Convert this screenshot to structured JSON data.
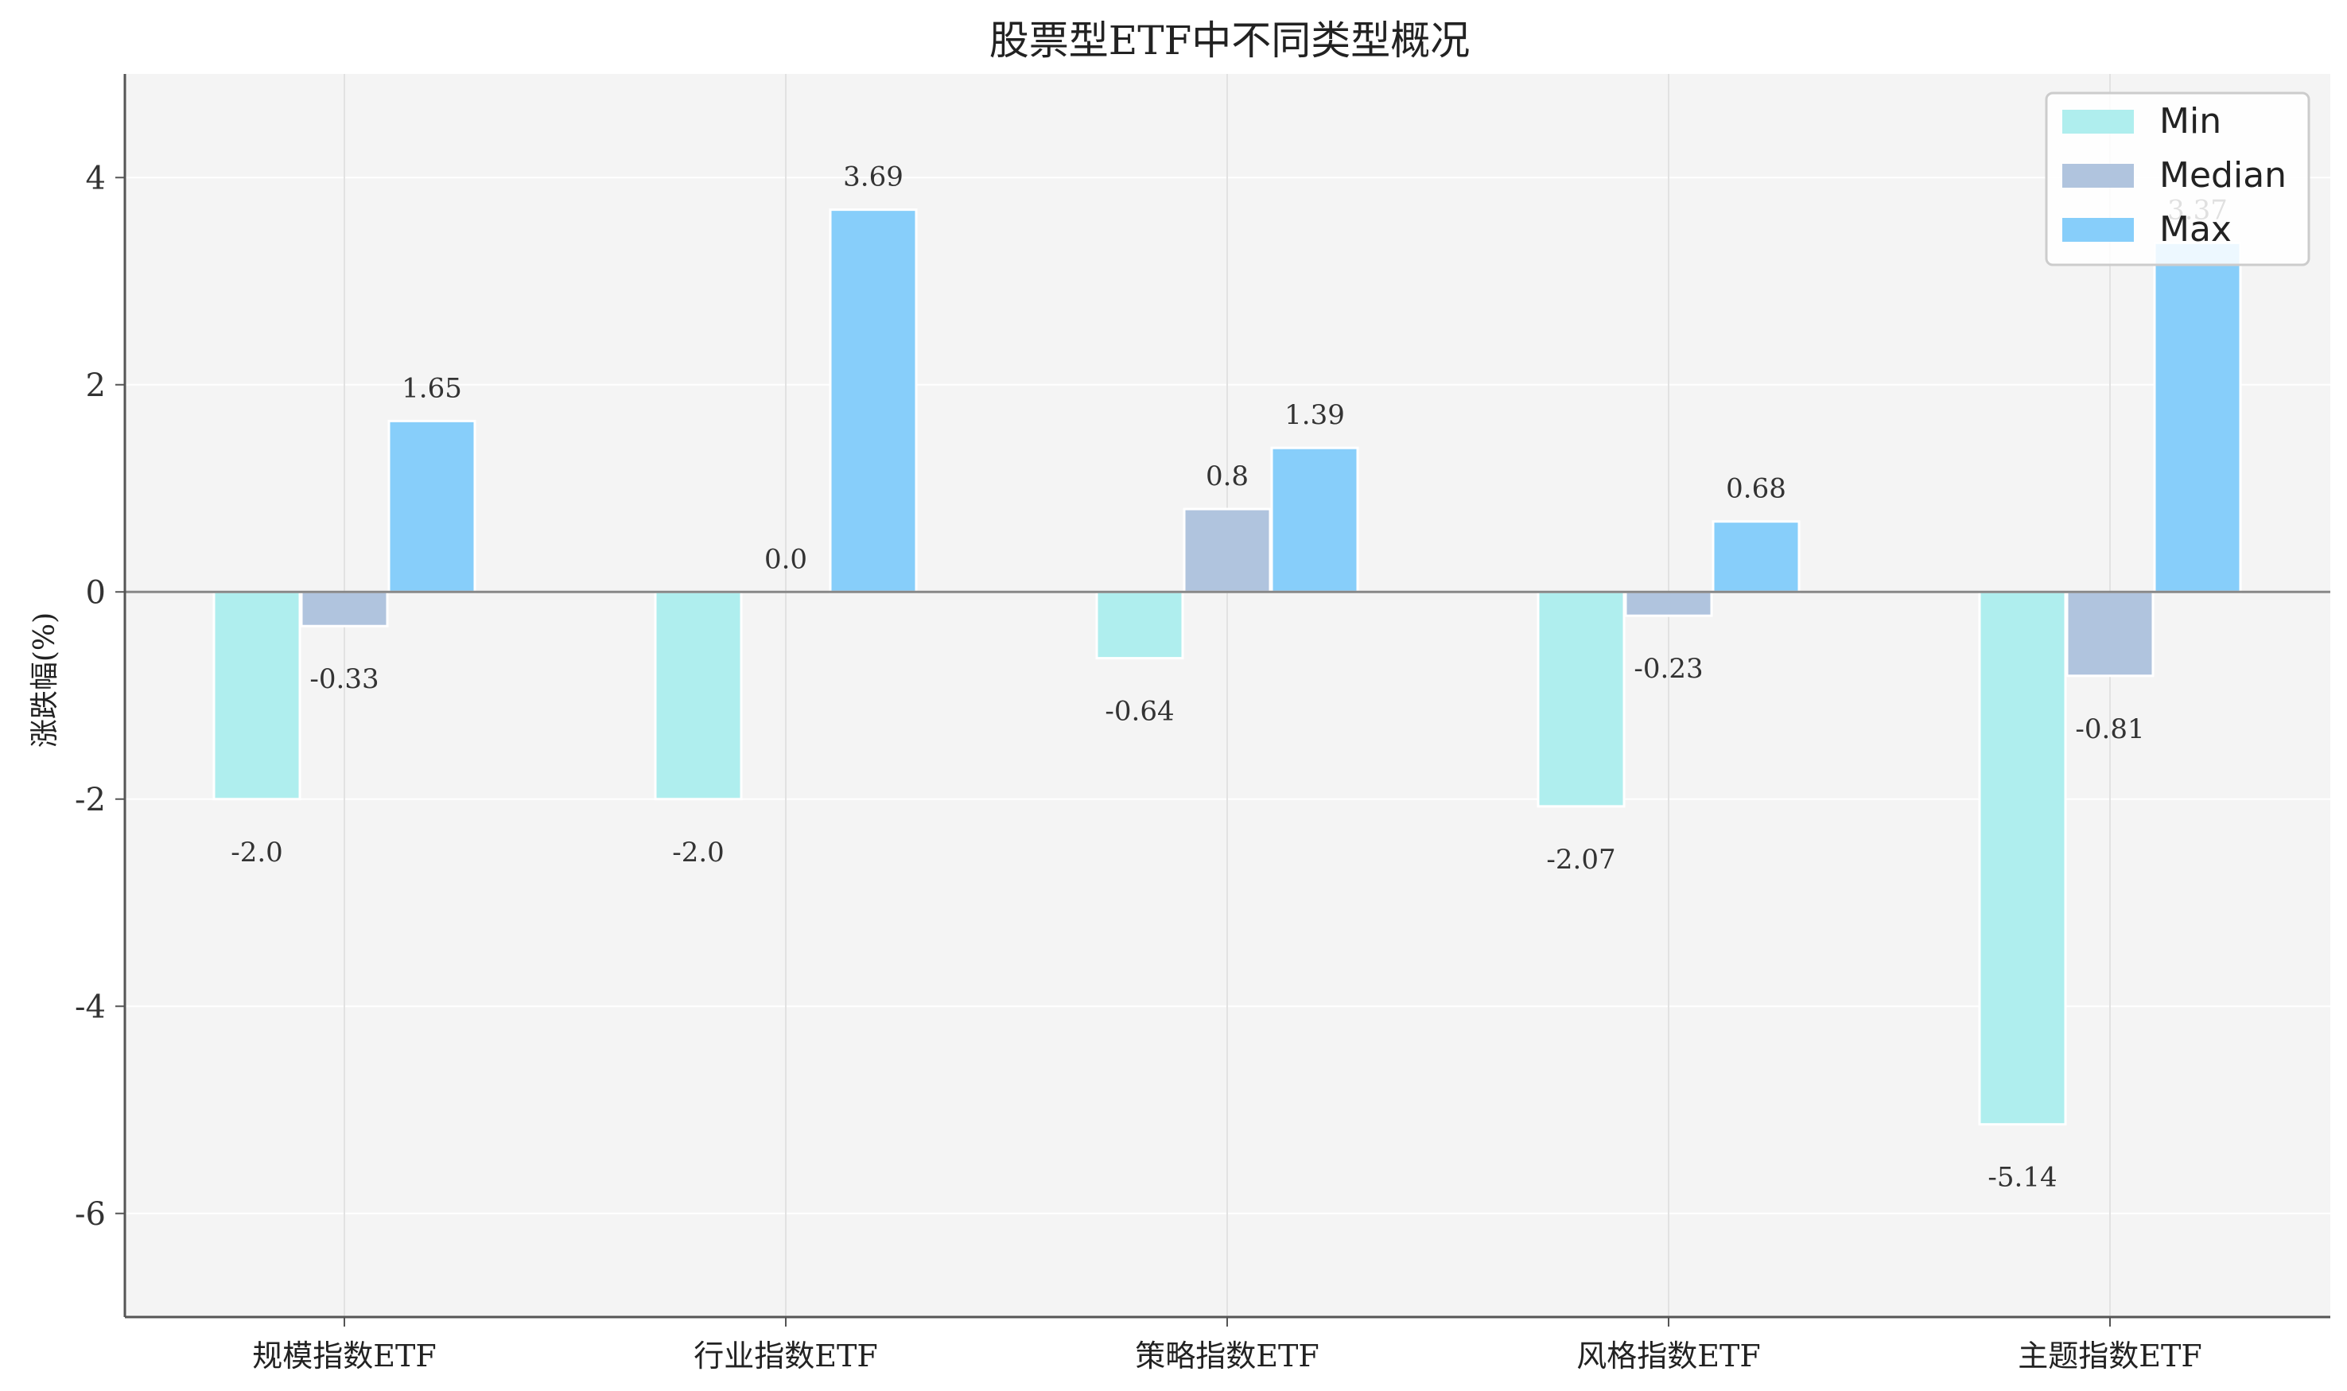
{
  "chart_data": {
    "type": "bar",
    "title": "股票型ETF中不同类型概况",
    "xlabel": "",
    "ylabel": "涨跌幅(%)",
    "categories": [
      "规模指数ETF",
      "行业指数ETF",
      "策略指数ETF",
      "风格指数ETF",
      "主题指数ETF"
    ],
    "series": [
      {
        "name": "Min",
        "values": [
          -2.0,
          -2.0,
          -0.64,
          -2.07,
          -5.14
        ],
        "labels": [
          "-2.0",
          "-2.0",
          "-0.64",
          "-2.07",
          "-5.14"
        ],
        "color": "#AFEEEE"
      },
      {
        "name": "Median",
        "values": [
          -0.33,
          0.0,
          0.8,
          -0.23,
          -0.81
        ],
        "labels": [
          "-0.33",
          "0.0",
          "0.8",
          "-0.23",
          "-0.81"
        ],
        "color": "#B0C4DE"
      },
      {
        "name": "Max",
        "values": [
          1.65,
          3.69,
          1.39,
          0.68,
          3.37
        ],
        "labels": [
          "1.65",
          "3.69",
          "1.39",
          "0.68",
          "3.37"
        ],
        "color": "#87CEFA"
      }
    ],
    "ylim": [
      -7,
      5
    ],
    "yticks": [
      -6,
      -4,
      -2,
      0,
      2,
      4
    ],
    "ytick_labels": [
      "-6",
      "-4",
      "-2",
      "0",
      "2",
      "4"
    ],
    "grid": true,
    "legend_position": "top-right",
    "background_color": "#F4F4F4"
  }
}
